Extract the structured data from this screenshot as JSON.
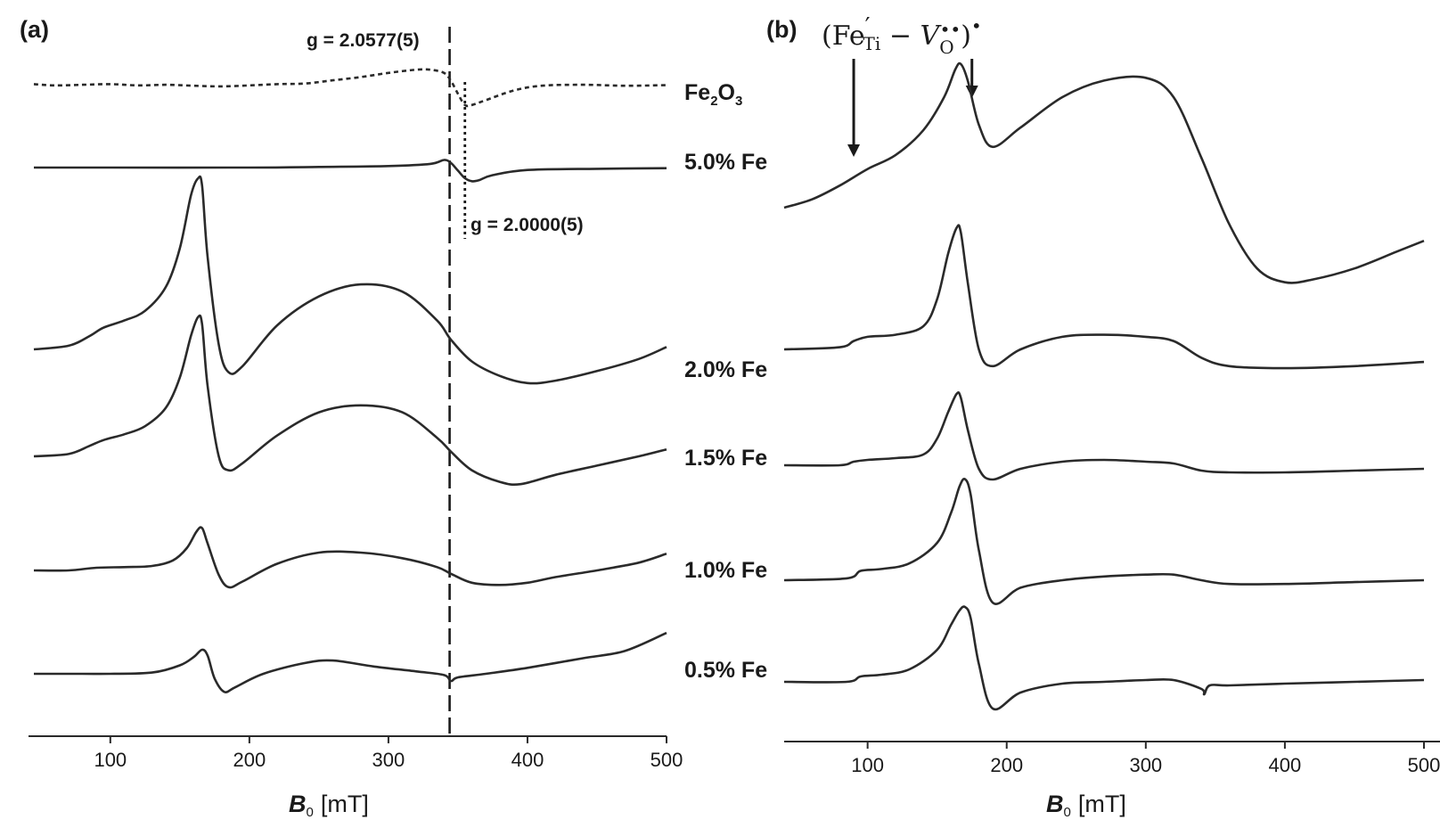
{
  "chart_data": [
    {
      "type": "line",
      "panel": "(a)",
      "xlabel": "B0 [mT]",
      "xlabel_main": "B",
      "xlabel_sub": "0",
      "xlabel_unit": "[mT]",
      "xlim": [
        45,
        500
      ],
      "xticks": [
        100,
        200,
        300,
        400,
        500
      ],
      "marker_lines": [
        {
          "label": "g = 2.0577(5)",
          "x": 344,
          "style": "dashed"
        },
        {
          "label": "g = 2.0000(5)",
          "x": 355,
          "style": "dotted"
        }
      ],
      "series": [
        {
          "name": "Fe2O3",
          "name_main": "Fe",
          "name_sub1": "2",
          "name_mid": "O",
          "name_sub2": "3",
          "style": "dotted",
          "x": [
            45,
            60,
            80,
            100,
            120,
            140,
            160,
            180,
            200,
            220,
            240,
            260,
            280,
            300,
            320,
            330,
            340,
            345,
            350,
            355,
            360,
            370,
            390,
            410,
            440,
            470,
            500
          ],
          "y": [
            0.1,
            0.06,
            0.08,
            0.1,
            0.06,
            0.08,
            0.05,
            0.03,
            0.06,
            0.1,
            0.12,
            0.22,
            0.32,
            0.45,
            0.55,
            0.55,
            0.45,
            0.2,
            -0.2,
            -0.55,
            -0.55,
            -0.4,
            -0.1,
            0.05,
            0.08,
            0.05,
            0.07
          ]
        },
        {
          "name": "5.0% Fe",
          "style": "solid",
          "x": [
            45,
            100,
            200,
            250,
            300,
            330,
            340,
            345,
            350,
            355,
            360,
            365,
            375,
            400,
            450,
            500
          ],
          "y": [
            0.0,
            0.0,
            0.0,
            0.02,
            0.05,
            0.12,
            0.25,
            0.15,
            -0.1,
            -0.35,
            -0.45,
            -0.42,
            -0.25,
            -0.08,
            -0.04,
            -0.02
          ]
        },
        {
          "name": "2.0% Fe",
          "style": "solid",
          "x": [
            45,
            70,
            85,
            95,
            110,
            125,
            140,
            150,
            158,
            163,
            166,
            170,
            178,
            185,
            195,
            220,
            250,
            280,
            310,
            335,
            345,
            360,
            380,
            400,
            420,
            450,
            480,
            500
          ],
          "y": [
            0.0,
            0.15,
            0.55,
            0.9,
            1.2,
            1.6,
            2.6,
            4.2,
            6.4,
            7.1,
            6.8,
            3.8,
            0.2,
            -0.95,
            -0.7,
            1.0,
            2.2,
            2.7,
            2.4,
            1.2,
            0.4,
            -0.5,
            -1.1,
            -1.4,
            -1.3,
            -0.9,
            -0.4,
            0.1
          ]
        },
        {
          "name": "1.5% Fe",
          "style": "solid",
          "x": [
            45,
            70,
            85,
            95,
            110,
            125,
            140,
            150,
            158,
            163,
            166,
            170,
            178,
            185,
            195,
            220,
            250,
            280,
            310,
            335,
            345,
            360,
            380,
            395,
            420,
            450,
            480,
            500
          ],
          "y": [
            0.0,
            0.1,
            0.45,
            0.7,
            0.95,
            1.3,
            2.1,
            3.4,
            5.2,
            6.0,
            5.7,
            3.0,
            0.0,
            -0.6,
            -0.3,
            0.9,
            1.9,
            2.2,
            1.9,
            0.8,
            0.2,
            -0.6,
            -1.1,
            -1.2,
            -0.8,
            -0.4,
            0.0,
            0.3
          ]
        },
        {
          "name": "1.0% Fe",
          "style": "solid",
          "x": [
            45,
            70,
            90,
            110,
            130,
            145,
            155,
            162,
            166,
            170,
            178,
            185,
            195,
            220,
            250,
            280,
            310,
            335,
            345,
            360,
            380,
            400,
            420,
            450,
            480,
            500
          ],
          "y": [
            0.0,
            0.0,
            0.12,
            0.15,
            0.2,
            0.45,
            1.0,
            1.75,
            1.9,
            1.2,
            -0.2,
            -0.75,
            -0.5,
            0.3,
            0.8,
            0.8,
            0.55,
            0.15,
            -0.15,
            -0.55,
            -0.65,
            -0.55,
            -0.3,
            0.0,
            0.35,
            0.75
          ]
        },
        {
          "name": "0.5% Fe",
          "style": "solid",
          "x": [
            45,
            80,
            100,
            130,
            150,
            160,
            166,
            170,
            175,
            182,
            190,
            210,
            240,
            260,
            290,
            320,
            340,
            345,
            350,
            370,
            400,
            440,
            470,
            500
          ],
          "y": [
            0.0,
            0.0,
            0.0,
            0.05,
            0.35,
            0.7,
            1.0,
            0.75,
            -0.2,
            -0.75,
            -0.55,
            0.0,
            0.45,
            0.55,
            0.3,
            0.1,
            -0.05,
            -0.3,
            -0.15,
            0.0,
            0.25,
            0.65,
            0.95,
            1.7
          ]
        }
      ]
    },
    {
      "type": "line",
      "panel": "(b)",
      "xlabel": "B0 [mT]",
      "xlabel_main": "B",
      "xlabel_sub": "0",
      "xlabel_unit": "[mT]",
      "xlim": [
        40,
        500
      ],
      "xticks": [
        100,
        200,
        300,
        400,
        500
      ],
      "annotation": {
        "label": "(Fe′Ti − V••O)•",
        "arrows_at": [
          90,
          175
        ]
      },
      "series": [
        {
          "name": "5.0% Fe (b)",
          "x": [
            40,
            60,
            80,
            100,
            120,
            140,
            155,
            163,
            167,
            172,
            180,
            190,
            210,
            240,
            270,
            300,
            320,
            340,
            360,
            380,
            400,
            420,
            450,
            480,
            500
          ],
          "y": [
            0.0,
            0.15,
            0.4,
            0.7,
            0.95,
            1.4,
            2.0,
            2.5,
            2.6,
            2.3,
            1.5,
            1.1,
            1.45,
            2.0,
            2.3,
            2.35,
            2.0,
            0.9,
            -0.3,
            -1.1,
            -1.35,
            -1.3,
            -1.1,
            -0.8,
            -0.6
          ]
        },
        {
          "name": "2.0% Fe (b)",
          "x": [
            40,
            80,
            90,
            100,
            120,
            140,
            150,
            158,
            164,
            167,
            172,
            180,
            190,
            210,
            240,
            270,
            300,
            320,
            340,
            360,
            400,
            450,
            500
          ],
          "y": [
            0.0,
            0.05,
            0.2,
            0.3,
            0.35,
            0.55,
            1.2,
            2.3,
            2.9,
            2.8,
            1.6,
            0.0,
            -0.4,
            0.0,
            0.3,
            0.35,
            0.3,
            0.2,
            -0.2,
            -0.4,
            -0.45,
            -0.4,
            -0.3
          ]
        },
        {
          "name": "1.5% Fe (b)",
          "x": [
            40,
            80,
            90,
            100,
            120,
            140,
            150,
            158,
            164,
            167,
            172,
            180,
            190,
            210,
            240,
            270,
            300,
            320,
            340,
            360,
            400,
            450,
            500
          ],
          "y": [
            0.0,
            0.0,
            0.1,
            0.15,
            0.2,
            0.3,
            0.75,
            1.5,
            2.0,
            1.9,
            1.0,
            -0.1,
            -0.4,
            -0.1,
            0.1,
            0.15,
            0.1,
            0.05,
            -0.15,
            -0.2,
            -0.2,
            -0.15,
            -0.1
          ]
        },
        {
          "name": "1.0% Fe (b)",
          "x": [
            40,
            85,
            95,
            110,
            130,
            150,
            160,
            166,
            170,
            174,
            180,
            190,
            210,
            240,
            270,
            300,
            320,
            340,
            360,
            400,
            450,
            500
          ],
          "y": [
            0.0,
            0.05,
            0.25,
            0.3,
            0.45,
            1.0,
            1.8,
            2.5,
            2.7,
            2.3,
            0.8,
            -0.6,
            -0.2,
            0.0,
            0.1,
            0.15,
            0.15,
            0.0,
            -0.1,
            -0.1,
            -0.05,
            0.0
          ]
        },
        {
          "name": "0.5% Fe (b)",
          "x": [
            40,
            85,
            95,
            110,
            130,
            150,
            160,
            166,
            170,
            174,
            180,
            190,
            210,
            240,
            270,
            300,
            320,
            340,
            342,
            346,
            360,
            400,
            450,
            500
          ],
          "y": [
            0.0,
            0.0,
            0.15,
            0.2,
            0.35,
            0.9,
            1.6,
            2.0,
            2.1,
            1.8,
            0.5,
            -0.75,
            -0.3,
            -0.05,
            0.0,
            0.05,
            0.05,
            -0.2,
            -0.35,
            -0.1,
            -0.1,
            -0.05,
            0.0,
            0.05
          ]
        }
      ]
    }
  ],
  "labels": {
    "panel_a": "(a)",
    "panel_b": "(b)",
    "g1": "g = 2.0577(5)",
    "g2": "g = 2.0000(5)",
    "trace_50": "5.0% Fe",
    "trace_20": "2.0% Fe",
    "trace_15": "1.5% Fe",
    "trace_10": "1.0% Fe",
    "trace_05": "0.5% Fe"
  },
  "colors": {
    "trace": "#2a2a2a"
  }
}
